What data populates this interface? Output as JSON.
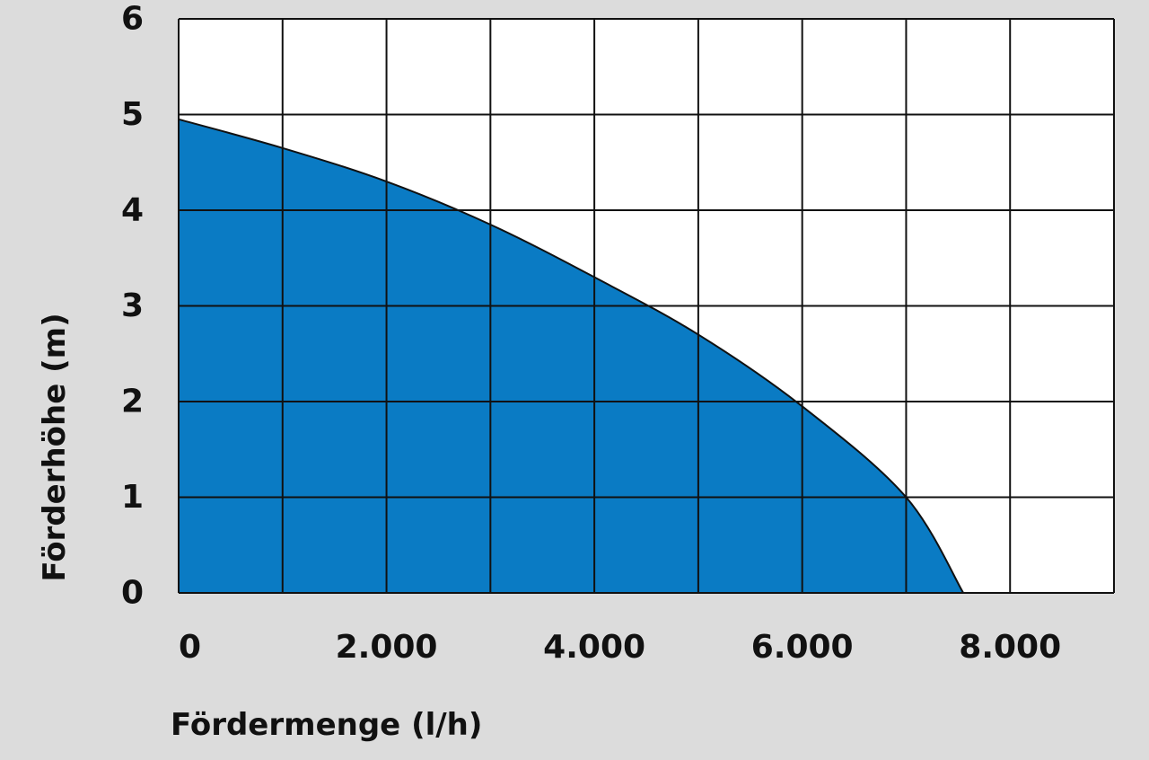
{
  "chart_data": {
    "type": "area",
    "xlabel": "Fördermenge (l/h)",
    "ylabel": "Förderhöhe (m)",
    "xlim": [
      0,
      9000
    ],
    "ylim": [
      0,
      6
    ],
    "x_ticks": [
      0,
      2000,
      4000,
      6000,
      8000
    ],
    "x_tick_labels": [
      "0",
      "2.000",
      "4.000",
      "6.000",
      "8.000"
    ],
    "y_ticks": [
      0,
      1,
      2,
      3,
      4,
      5,
      6
    ],
    "y_tick_labels": [
      "0",
      "1",
      "2",
      "3",
      "4",
      "5",
      "6"
    ],
    "grid": true,
    "legend": "none",
    "series": [
      {
        "x": [
          0,
          1000,
          2000,
          3000,
          4000,
          5000,
          6000,
          7000,
          7550
        ],
        "values": [
          4.95,
          4.65,
          4.3,
          3.85,
          3.3,
          2.7,
          1.95,
          1.0,
          0.0
        ]
      }
    ],
    "colors": {
      "fill": "#0a7bc4",
      "background": "#dcdcdc",
      "plot_bg": "#ffffff",
      "line": "#111111"
    }
  }
}
